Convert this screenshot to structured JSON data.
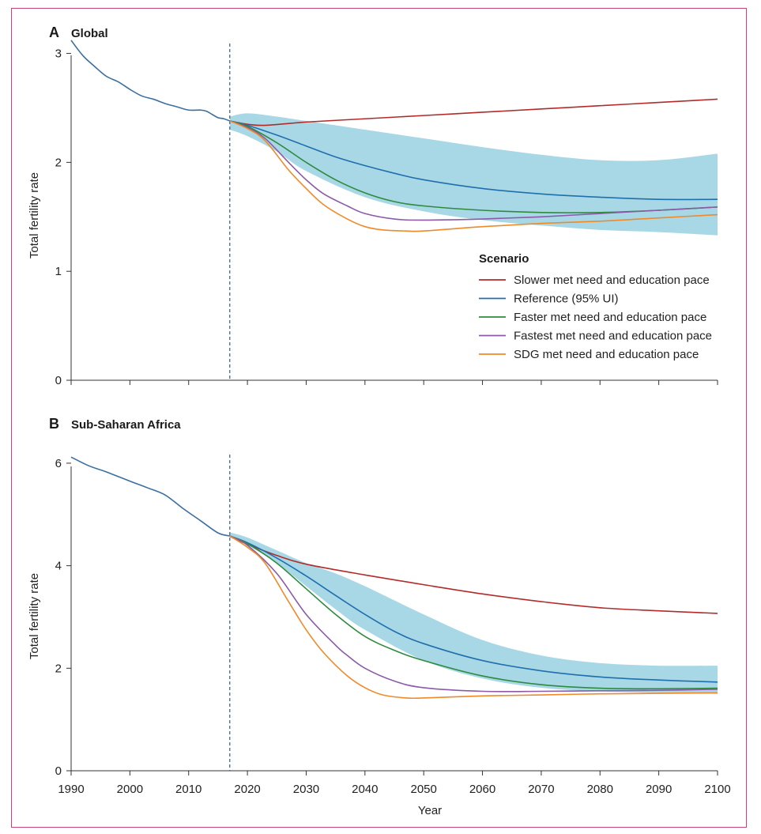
{
  "chart_data": [
    {
      "type": "line",
      "panel_letter": "A",
      "title": "Global",
      "xlabel": "",
      "ylabel": "Total fertility rate",
      "xlim": [
        1990,
        2100
      ],
      "ylim": [
        0,
        3.2
      ],
      "yticks": [
        0,
        1,
        2,
        3
      ],
      "xticks": [
        1990,
        2000,
        2010,
        2020,
        2030,
        2040,
        2050,
        2060,
        2070,
        2080,
        2090,
        2100
      ],
      "grid": false,
      "reference_year_marker": 2017,
      "historical": {
        "name": "",
        "color": "#3a6f9f",
        "x": [
          1990,
          1992,
          1994,
          1996,
          1998,
          2000,
          2002,
          2004,
          2006,
          2008,
          2010,
          2012,
          2013,
          2014,
          2015,
          2016,
          2017
        ],
        "y": [
          3.12,
          2.98,
          2.88,
          2.79,
          2.74,
          2.67,
          2.61,
          2.58,
          2.54,
          2.51,
          2.48,
          2.48,
          2.47,
          2.44,
          2.41,
          2.4,
          2.38
        ]
      },
      "uncertainty_band": {
        "name": "95% UI",
        "color": "#a8d8e6",
        "x": [
          2017,
          2020,
          2025,
          2030,
          2040,
          2050,
          2060,
          2070,
          2080,
          2090,
          2100
        ],
        "lower": [
          2.3,
          2.24,
          2.1,
          1.92,
          1.68,
          1.55,
          1.47,
          1.42,
          1.38,
          1.36,
          1.33
        ],
        "upper": [
          2.42,
          2.45,
          2.42,
          2.38,
          2.3,
          2.22,
          2.14,
          2.07,
          2.02,
          2.02,
          2.08
        ]
      },
      "legend": {
        "title": "Scenario",
        "placement": "bottom-right"
      },
      "series": [
        {
          "name": "Slower met need and education pace",
          "color": "#b22b2b",
          "x": [
            2017,
            2020,
            2023,
            2030,
            2040,
            2050,
            2060,
            2070,
            2080,
            2090,
            2100
          ],
          "y": [
            2.38,
            2.35,
            2.34,
            2.37,
            2.4,
            2.43,
            2.46,
            2.49,
            2.52,
            2.55,
            2.58
          ]
        },
        {
          "name": "Reference (95% UI)",
          "color": "#1f6fae",
          "x": [
            2017,
            2020,
            2025,
            2030,
            2035,
            2040,
            2045,
            2050,
            2060,
            2070,
            2080,
            2090,
            2100
          ],
          "y": [
            2.38,
            2.34,
            2.25,
            2.15,
            2.05,
            1.97,
            1.9,
            1.84,
            1.76,
            1.71,
            1.68,
            1.66,
            1.66
          ]
        },
        {
          "name": "Faster met need and education pace",
          "color": "#2e8b3e",
          "x": [
            2017,
            2020,
            2025,
            2030,
            2035,
            2040,
            2045,
            2050,
            2060,
            2070,
            2080,
            2090,
            2100
          ],
          "y": [
            2.38,
            2.33,
            2.18,
            2.0,
            1.84,
            1.72,
            1.64,
            1.6,
            1.56,
            1.54,
            1.54,
            1.56,
            1.59
          ]
        },
        {
          "name": "Fastest met need and education pace",
          "color": "#8b5aa8",
          "x": [
            2017,
            2020,
            2023,
            2027,
            2030,
            2033,
            2037,
            2040,
            2045,
            2050,
            2060,
            2070,
            2080,
            2090,
            2100
          ],
          "y": [
            2.38,
            2.32,
            2.22,
            2.0,
            1.84,
            1.71,
            1.6,
            1.53,
            1.48,
            1.47,
            1.48,
            1.5,
            1.53,
            1.56,
            1.59
          ]
        },
        {
          "name": "SDG met need and education pace",
          "color": "#ef8a2a",
          "x": [
            2017,
            2020,
            2023,
            2027,
            2030,
            2033,
            2037,
            2040,
            2043,
            2047,
            2050,
            2060,
            2070,
            2080,
            2090,
            2100
          ],
          "y": [
            2.38,
            2.31,
            2.2,
            1.93,
            1.76,
            1.61,
            1.48,
            1.41,
            1.38,
            1.37,
            1.37,
            1.41,
            1.44,
            1.46,
            1.49,
            1.52
          ]
        }
      ]
    },
    {
      "type": "line",
      "panel_letter": "B",
      "title": "Sub-Saharan Africa",
      "xlabel": "Year",
      "ylabel": "Total fertility rate",
      "xlim": [
        1990,
        2100
      ],
      "ylim": [
        0,
        6.4
      ],
      "yticks": [
        0,
        2,
        4,
        6
      ],
      "xticks": [
        1990,
        2000,
        2010,
        2020,
        2030,
        2040,
        2050,
        2060,
        2070,
        2080,
        2090,
        2100
      ],
      "grid": false,
      "reference_year_marker": 2017,
      "historical": {
        "name": "",
        "color": "#3a6f9f",
        "x": [
          1990,
          1993,
          1996,
          2000,
          2003,
          2006,
          2009,
          2012,
          2015,
          2017
        ],
        "y": [
          6.12,
          5.95,
          5.83,
          5.65,
          5.52,
          5.38,
          5.12,
          4.88,
          4.64,
          4.58
        ]
      },
      "uncertainty_band": {
        "name": "95% UI",
        "color": "#a8d8e6",
        "x": [
          2017,
          2020,
          2025,
          2030,
          2035,
          2040,
          2050,
          2060,
          2070,
          2080,
          2090,
          2100
        ],
        "lower": [
          4.55,
          4.4,
          4.05,
          3.6,
          3.15,
          2.75,
          2.15,
          1.8,
          1.62,
          1.55,
          1.52,
          1.5
        ],
        "upper": [
          4.65,
          4.55,
          4.3,
          4.05,
          3.85,
          3.6,
          3.05,
          2.55,
          2.25,
          2.1,
          2.05,
          2.05
        ]
      },
      "series": [
        {
          "name": "Slower met need and education pace",
          "color": "#b22b2b",
          "x": [
            2017,
            2020,
            2025,
            2030,
            2040,
            2050,
            2060,
            2070,
            2080,
            2090,
            2100
          ],
          "y": [
            4.58,
            4.42,
            4.2,
            4.03,
            3.82,
            3.63,
            3.45,
            3.3,
            3.18,
            3.12,
            3.07
          ]
        },
        {
          "name": "Reference (95% UI)",
          "color": "#1f6fae",
          "x": [
            2017,
            2020,
            2025,
            2030,
            2035,
            2040,
            2045,
            2050,
            2060,
            2070,
            2080,
            2090,
            2100
          ],
          "y": [
            4.58,
            4.45,
            4.15,
            3.8,
            3.42,
            3.05,
            2.72,
            2.48,
            2.15,
            1.95,
            1.83,
            1.77,
            1.73
          ]
        },
        {
          "name": "Faster met need and education pace",
          "color": "#2e8b3e",
          "x": [
            2017,
            2020,
            2025,
            2030,
            2035,
            2040,
            2045,
            2050,
            2060,
            2070,
            2080,
            2090,
            2100
          ],
          "y": [
            4.58,
            4.43,
            4.05,
            3.55,
            3.05,
            2.62,
            2.35,
            2.15,
            1.85,
            1.68,
            1.61,
            1.6,
            1.61
          ]
        },
        {
          "name": "Fastest met need and education pace",
          "color": "#8b5aa8",
          "x": [
            2017,
            2020,
            2025,
            2030,
            2035,
            2037,
            2040,
            2045,
            2050,
            2060,
            2070,
            2080,
            2090,
            2100
          ],
          "y": [
            4.58,
            4.4,
            3.85,
            3.05,
            2.45,
            2.25,
            2.0,
            1.75,
            1.62,
            1.55,
            1.55,
            1.56,
            1.57,
            1.59
          ]
        },
        {
          "name": "SDG met need and education pace",
          "color": "#ef8a2a",
          "x": [
            2017,
            2020,
            2023,
            2027,
            2030,
            2033,
            2037,
            2040,
            2043,
            2047,
            2050,
            2060,
            2070,
            2080,
            2090,
            2100
          ],
          "y": [
            4.58,
            4.36,
            4.05,
            3.3,
            2.75,
            2.3,
            1.85,
            1.62,
            1.48,
            1.42,
            1.42,
            1.46,
            1.48,
            1.5,
            1.51,
            1.52
          ]
        }
      ]
    }
  ]
}
